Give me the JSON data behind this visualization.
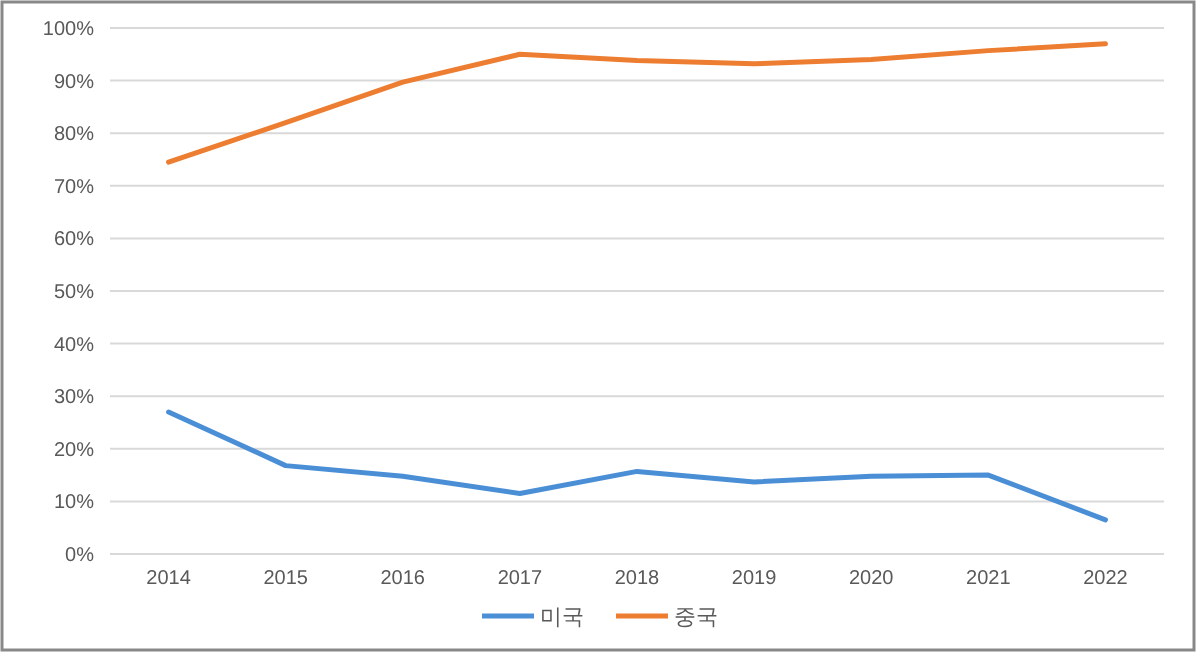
{
  "chart_data": {
    "type": "line",
    "categories": [
      "2014",
      "2015",
      "2016",
      "2017",
      "2018",
      "2019",
      "2020",
      "2021",
      "2022"
    ],
    "series": [
      {
        "name": "미국",
        "color": "#4a8fd6",
        "values": [
          27,
          16.8,
          14.8,
          11.5,
          15.7,
          13.7,
          14.8,
          15,
          6.5
        ]
      },
      {
        "name": "중국",
        "color": "#ed7d31",
        "values": [
          74.5,
          82,
          89.7,
          95,
          93.8,
          93.2,
          94,
          95.7,
          97
        ]
      }
    ],
    "ylim": [
      0,
      100
    ],
    "yticks": [
      {
        "value": 0,
        "label": "0%"
      },
      {
        "value": 10,
        "label": "10%"
      },
      {
        "value": 20,
        "label": "20%"
      },
      {
        "value": 30,
        "label": "30%"
      },
      {
        "value": 40,
        "label": "40%"
      },
      {
        "value": 50,
        "label": "50%"
      },
      {
        "value": 60,
        "label": "60%"
      },
      {
        "value": 70,
        "label": "70%"
      },
      {
        "value": 80,
        "label": "80%"
      },
      {
        "value": 90,
        "label": "90%"
      },
      {
        "value": 100,
        "label": "100%"
      }
    ],
    "grid": "y",
    "legend": "bottom",
    "line_style": "solid",
    "marker": "none"
  }
}
